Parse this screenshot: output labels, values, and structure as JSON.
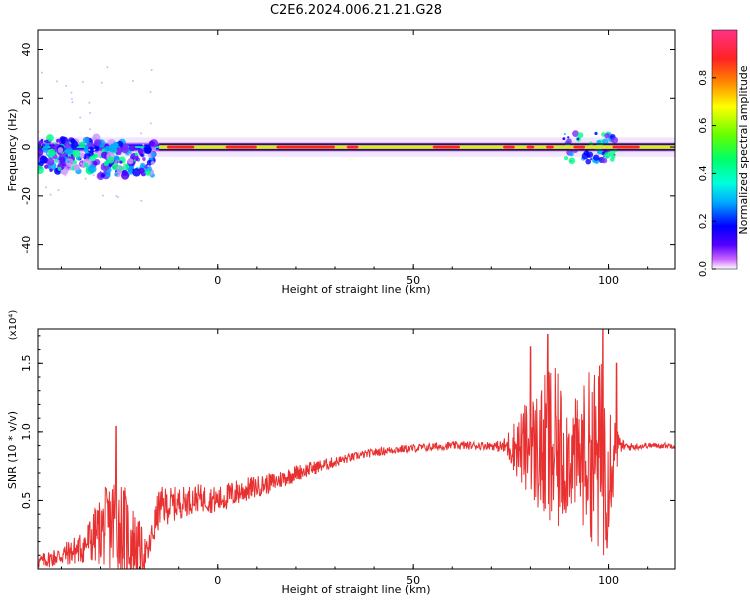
{
  "title": "C2E6.2024.006.21.21.G28",
  "colors": {
    "snr_line": "#e83030",
    "freq_center_line": "#000000",
    "colormap": [
      "#ffffff",
      "#cc66ff",
      "#5500ff",
      "#0000ff",
      "#00aaff",
      "#00ffdd",
      "#00ff66",
      "#66ff00",
      "#ffff00",
      "#ff8800",
      "#ff2222",
      "#ff3388"
    ]
  },
  "chart_data": [
    {
      "type": "heatmap",
      "xlabel": "Height of straight line (km)",
      "ylabel": "Frequency (Hz)",
      "xlim": [
        -46,
        117
      ],
      "ylim": [
        -50,
        48
      ],
      "x_ticks": [
        0,
        50,
        100
      ],
      "y_ticks": [
        -40,
        -20,
        0,
        20,
        40
      ],
      "y_tick_labels": [
        "-40",
        "-20",
        "0",
        "20",
        "40"
      ],
      "colorbar": {
        "label": "Normalized spectral amplitude",
        "range": [
          0,
          1
        ],
        "ticks": [
          0.0,
          0.2,
          0.4,
          0.6,
          0.8
        ],
        "tick_labels": [
          "0.0",
          "0.2",
          "0.4",
          "0.6",
          "0.8"
        ]
      },
      "center_line_y": 0,
      "band": {
        "description_points_x": [
          -46,
          -35,
          -25,
          -15,
          0,
          25,
          50,
          75,
          95,
          100,
          117
        ],
        "peak_offset_hz": [
          0,
          -3,
          -2,
          0,
          0,
          0,
          0,
          0,
          1,
          0,
          0
        ]
      }
    },
    {
      "type": "line",
      "xlabel": "Height of straight line (km)",
      "ylabel": "SNR (10 * v/v)",
      "y_multiplier_label": "(x10⁴)",
      "xlim": [
        -46,
        117
      ],
      "ylim": [
        0,
        1.75
      ],
      "x_ticks": [
        0,
        50,
        100
      ],
      "y_ticks": [
        0.5,
        1.0,
        1.5
      ],
      "y_tick_labels": [
        "0.5",
        "1.0",
        "1.5"
      ],
      "envelope": {
        "x": [
          -46,
          -40,
          -35,
          -30,
          -26,
          -22,
          -18,
          -15,
          -10,
          -5,
          0,
          5,
          10,
          15,
          20,
          25,
          30,
          35,
          40,
          45,
          50,
          55,
          60,
          65,
          70,
          73,
          75,
          78,
          80,
          83,
          85,
          88,
          90,
          92,
          95,
          97,
          99,
          101,
          103,
          105,
          110,
          117
        ],
        "mean": [
          0.05,
          0.1,
          0.15,
          0.28,
          0.35,
          0.2,
          0.1,
          0.45,
          0.48,
          0.52,
          0.5,
          0.56,
          0.6,
          0.64,
          0.7,
          0.74,
          0.78,
          0.82,
          0.85,
          0.87,
          0.88,
          0.89,
          0.9,
          0.9,
          0.9,
          0.89,
          0.9,
          0.88,
          0.88,
          0.85,
          0.85,
          0.82,
          0.85,
          0.8,
          0.85,
          0.8,
          0.78,
          0.85,
          0.9,
          0.89,
          0.9,
          0.9
        ],
        "amp": [
          0.05,
          0.08,
          0.12,
          0.25,
          0.4,
          0.3,
          0.1,
          0.15,
          0.12,
          0.1,
          0.1,
          0.1,
          0.08,
          0.07,
          0.06,
          0.05,
          0.04,
          0.03,
          0.03,
          0.03,
          0.03,
          0.03,
          0.03,
          0.03,
          0.03,
          0.05,
          0.15,
          0.3,
          0.4,
          0.5,
          0.7,
          0.55,
          0.4,
          0.45,
          0.6,
          0.7,
          0.8,
          0.4,
          0.05,
          0.03,
          0.02,
          0.02
        ]
      },
      "peaks": [
        {
          "x": -26,
          "y": 1.04
        },
        {
          "x": 84.5,
          "y": 1.71
        },
        {
          "x": 98.5,
          "y": 1.75
        },
        {
          "x": 80,
          "y": 1.62
        },
        {
          "x": 102,
          "y": 1.5
        }
      ]
    }
  ]
}
